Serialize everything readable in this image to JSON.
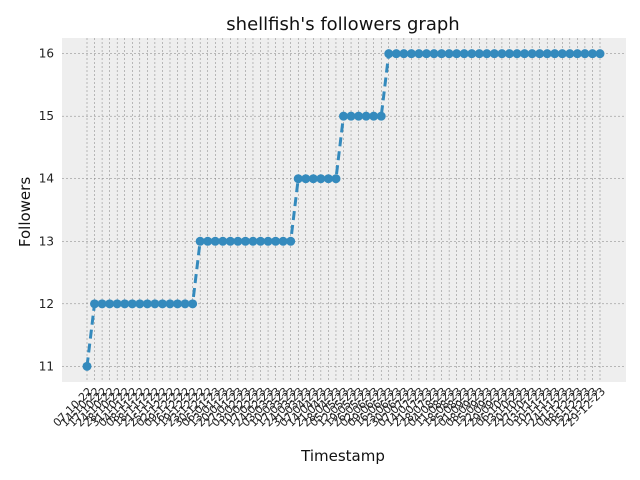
{
  "chart_data": {
    "type": "line",
    "title": "shellfish's followers graph",
    "xlabel": "Timestamp",
    "ylabel": "Followers",
    "ylim": [
      10.75,
      16.25
    ],
    "yticks": [
      11,
      12,
      13,
      14,
      15,
      16
    ],
    "grid": true,
    "colors": {
      "series": "#348ABD",
      "grid": "#808080",
      "plot_bg": "#EEEEEE"
    },
    "series": [
      {
        "x": [
          "07-10-22",
          "14-10-22",
          "17-10-22",
          "24-10-22",
          "28-10-22",
          "31-10-22",
          "04-11-22",
          "08-11-22",
          "18-11-22",
          "21-11-22",
          "25-11-22",
          "02-12-22",
          "09-12-22",
          "16-12-22",
          "19-12-22",
          "23-12-22",
          "30-12-22",
          "06-01-23",
          "13-01-23",
          "20-01-23",
          "27-01-23",
          "03-02-23",
          "10-02-23",
          "17-02-23",
          "24-02-23",
          "03-03-23",
          "10-03-23",
          "17-03-23",
          "24-03-23",
          "31-03-23",
          "07-04-23",
          "14-04-23",
          "21-04-23",
          "28-04-23",
          "05-05-23",
          "12-05-23",
          "19-05-23",
          "26-05-23",
          "02-06-23",
          "09-06-23",
          "16-06-23",
          "23-06-23",
          "30-06-23",
          "07-07-23",
          "14-07-23",
          "21-07-23",
          "28-07-23",
          "04-08-23",
          "11-08-23",
          "18-08-23",
          "25-08-23",
          "01-09-23",
          "08-09-23",
          "15-09-23",
          "22-09-23",
          "29-09-23",
          "06-10-23",
          "13-10-23",
          "20-10-23",
          "27-10-23",
          "03-11-23",
          "10-11-23",
          "17-11-23",
          "24-11-23",
          "01-12-23",
          "08-12-23",
          "15-12-23",
          "22-12-23",
          "29-12-23"
        ],
        "values": [
          11,
          12,
          12,
          12,
          12,
          12,
          12,
          12,
          12,
          12,
          12,
          12,
          12,
          12,
          12,
          13,
          13,
          13,
          13,
          13,
          13,
          13,
          13,
          13,
          13,
          13,
          13,
          13,
          14,
          14,
          14,
          14,
          14,
          14,
          15,
          15,
          15,
          15,
          15,
          15,
          16,
          16,
          16,
          16,
          16,
          16,
          16,
          16,
          16,
          16,
          16,
          16,
          16,
          16,
          16,
          16,
          16,
          16,
          16,
          16,
          16,
          16,
          16,
          16,
          16,
          16,
          16,
          16,
          16
        ]
      }
    ]
  }
}
